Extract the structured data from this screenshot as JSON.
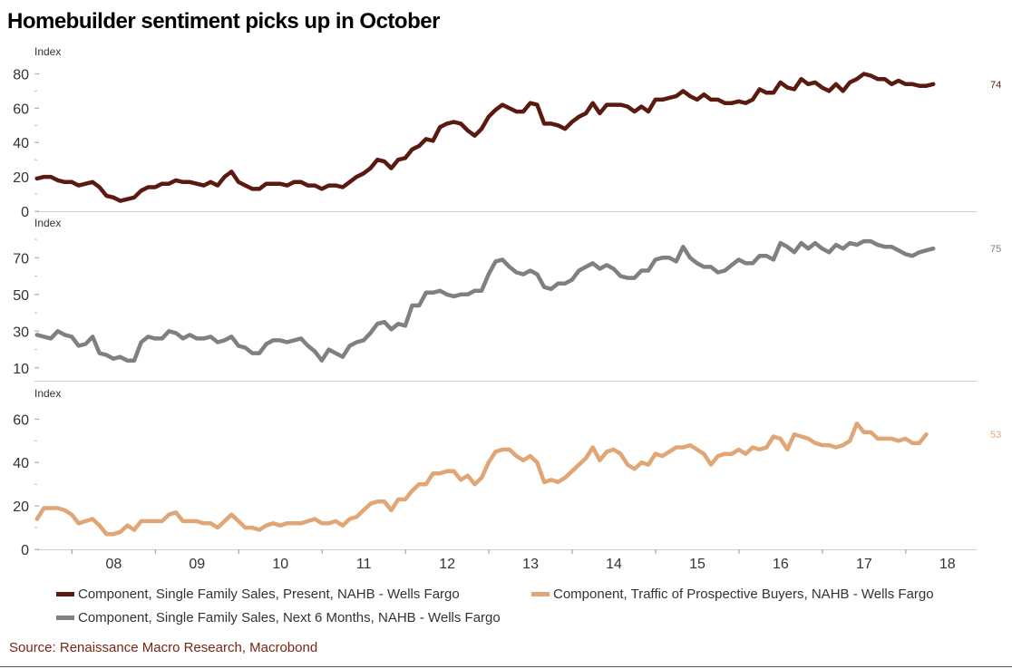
{
  "title": "Homebuilder sentiment picks up in October",
  "source": "Source: Renaissance Macro Research, Macrobond",
  "colors": {
    "present": "#5a1a10",
    "next6": "#808080",
    "traffic": "#e1a676",
    "source_text": "#7a2512"
  },
  "x_ticks": [
    "08",
    "09",
    "10",
    "11",
    "12",
    "13",
    "14",
    "15",
    "16",
    "17",
    "18"
  ],
  "legend": [
    {
      "key": "present",
      "label": "Component, Single Family Sales, Present, NAHB - Wells Fargo"
    },
    {
      "key": "traffic",
      "label": "Component, Traffic of Prospective Buyers, NAHB - Wells Fargo"
    },
    {
      "key": "next6",
      "label": "Component, Single Family Sales, Next 6 Months, NAHB - Wells Fargo"
    }
  ],
  "chart_data": [
    {
      "type": "line",
      "ylabel": "Index",
      "ylim": [
        0,
        85
      ],
      "yticks": [
        0,
        20,
        40,
        60,
        80
      ],
      "xlim": [
        2007.55,
        2018.85
      ],
      "last_value_label": "74",
      "series": [
        {
          "name": "Component, Single Family Sales, Present, NAHB - Wells Fargo",
          "color_key": "present",
          "x_start": 2007.58,
          "step": 0.0833333,
          "values": [
            19,
            20,
            20,
            18,
            17,
            17,
            15,
            16,
            17,
            14,
            9,
            8,
            6,
            7,
            8,
            12,
            14,
            14,
            16,
            16,
            18,
            17,
            17,
            16,
            15,
            17,
            15,
            20,
            23,
            17,
            15,
            13,
            13,
            16,
            16,
            16,
            15,
            17,
            17,
            15,
            15,
            13,
            15,
            15,
            14,
            17,
            20,
            22,
            25,
            30,
            29,
            25,
            30,
            31,
            36,
            38,
            42,
            41,
            49,
            51,
            52,
            51,
            47,
            44,
            48,
            55,
            59,
            62,
            60,
            58,
            58,
            63,
            62,
            51,
            51,
            50,
            48,
            52,
            55,
            57,
            63,
            57,
            62,
            62,
            62,
            61,
            58,
            61,
            58,
            65,
            65,
            66,
            67,
            70,
            67,
            65,
            68,
            65,
            65,
            63,
            63,
            64,
            63,
            65,
            71,
            69,
            69,
            75,
            72,
            71,
            77,
            74,
            75,
            72,
            70,
            74,
            70,
            75,
            77,
            80,
            79,
            77,
            77,
            74,
            76,
            74,
            74,
            73,
            73,
            74
          ]
        }
      ]
    },
    {
      "type": "line",
      "ylabel": "Index",
      "ylim": [
        3,
        83
      ],
      "yticks": [
        10,
        30,
        50,
        70
      ],
      "xlim": [
        2007.55,
        2018.85
      ],
      "last_value_label": "75",
      "series": [
        {
          "name": "Component, Single Family Sales, Next 6 Months, NAHB - Wells Fargo",
          "color_key": "next6",
          "x_start": 2007.58,
          "step": 0.0833333,
          "values": [
            28,
            27,
            26,
            30,
            28,
            27,
            22,
            23,
            27,
            18,
            17,
            15,
            16,
            14,
            14,
            24,
            27,
            26,
            26,
            30,
            29,
            26,
            28,
            26,
            26,
            27,
            24,
            25,
            27,
            22,
            21,
            18,
            18,
            23,
            25,
            25,
            24,
            25,
            26,
            22,
            19,
            14,
            20,
            18,
            16,
            22,
            24,
            25,
            29,
            34,
            35,
            31,
            34,
            33,
            44,
            44,
            51,
            51,
            52,
            50,
            49,
            50,
            50,
            52,
            52,
            61,
            68,
            69,
            65,
            62,
            61,
            63,
            61,
            54,
            53,
            56,
            56,
            58,
            63,
            65,
            67,
            64,
            66,
            64,
            60,
            59,
            59,
            63,
            63,
            69,
            70,
            70,
            68,
            76,
            70,
            67,
            65,
            65,
            62,
            63,
            66,
            69,
            67,
            67,
            71,
            71,
            69,
            78,
            76,
            73,
            78,
            75,
            78,
            75,
            73,
            77,
            75,
            78,
            77,
            79,
            79,
            77,
            76,
            76,
            74,
            72,
            71,
            73,
            74,
            75
          ]
        }
      ]
    },
    {
      "type": "line",
      "ylabel": "Index",
      "ylim": [
        0,
        66
      ],
      "yticks": [
        0,
        20,
        40,
        60
      ],
      "xlim": [
        2007.55,
        2018.85
      ],
      "last_value_label": "53",
      "series": [
        {
          "name": "Component, Traffic of Prospective Buyers, NAHB - Wells Fargo",
          "color_key": "traffic",
          "x_start": 2007.58,
          "step": 0.0833333,
          "values": [
            14,
            19,
            19,
            19,
            18,
            16,
            12,
            13,
            14,
            11,
            7,
            7,
            8,
            11,
            9,
            13,
            13,
            13,
            13,
            16,
            17,
            13,
            13,
            13,
            12,
            12,
            10,
            13,
            16,
            13,
            10,
            10,
            9,
            11,
            12,
            11,
            12,
            12,
            12,
            13,
            14,
            12,
            12,
            13,
            11,
            14,
            15,
            18,
            21,
            22,
            22,
            18,
            23,
            23,
            27,
            30,
            30,
            35,
            35,
            36,
            36,
            32,
            34,
            30,
            33,
            40,
            45,
            46,
            46,
            43,
            41,
            43,
            40,
            31,
            32,
            31,
            33,
            36,
            39,
            42,
            47,
            41,
            45,
            46,
            44,
            39,
            37,
            40,
            39,
            44,
            43,
            45,
            47,
            47,
            48,
            46,
            44,
            39,
            43,
            44,
            44,
            46,
            44,
            47,
            46,
            47,
            52,
            51,
            46,
            53,
            52,
            51,
            49,
            48,
            48,
            47,
            48,
            50,
            58,
            54,
            54,
            51,
            51,
            51,
            50,
            51,
            49,
            49,
            53
          ]
        }
      ]
    }
  ]
}
